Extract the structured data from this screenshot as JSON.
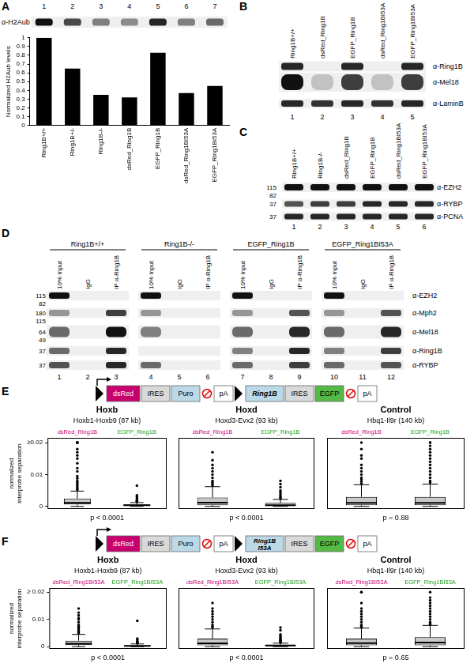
{
  "panel_labels": [
    "A",
    "B",
    "C",
    "D",
    "E",
    "F"
  ],
  "blot_A": {
    "lane_numbers": [
      1,
      2,
      3,
      4,
      5,
      6,
      7
    ],
    "antibody": "α-H2Aub"
  },
  "blot_B": {
    "lane_labels": [
      "Ring1B+/+",
      "dsRed_Ring1B",
      "EGFP_Ring1B",
      "dsRed_Ring1BI53A",
      "EGFP_Ring1BI53A"
    ],
    "lane_numbers": [
      1,
      2,
      3,
      4,
      5
    ],
    "antibodies": [
      "α-Ring1B",
      "α-Mel18",
      "α-LaminB"
    ]
  },
  "blot_C": {
    "lane_labels": [
      "Ring1B+/+",
      "Ring1B-/-",
      "dsRed_Ring1B",
      "EGFP_Ring1B",
      "dsRed_Ring1BI53A",
      "EGFP_Ring1BI53A"
    ],
    "lane_numbers": [
      1,
      2,
      3,
      4,
      5,
      6
    ],
    "rows": [
      {
        "antibody": "α-EZH2",
        "markers": [
          115,
          82
        ]
      },
      {
        "antibody": "α-RYBP",
        "markers": [
          37
        ]
      },
      {
        "antibody": "α-PCNA",
        "markers": [
          37
        ]
      }
    ]
  },
  "blot_D": {
    "groups": [
      "Ring1B+/+",
      "Ring1B-/-",
      "EGFP_Ring1B",
      "EGFP_Ring1BI53A"
    ],
    "columns": [
      "10% Input",
      "IgG",
      "IP α-Ring1B"
    ],
    "lane_numbers": [
      1,
      2,
      3,
      4,
      5,
      6,
      7,
      8,
      9,
      10,
      11,
      12
    ],
    "rows": [
      {
        "antibody": "α-EZH2",
        "markers": [
          115,
          82
        ]
      },
      {
        "antibody": "α-Mph2",
        "markers": [
          180,
          115
        ]
      },
      {
        "antibody": "α-Mel18",
        "markers": [
          64,
          49
        ]
      },
      {
        "antibody": "α-Ring1B",
        "markers": [
          37
        ]
      },
      {
        "antibody": "α-RYBP",
        "markers": [
          37
        ]
      }
    ]
  },
  "constructs": {
    "E": [
      {
        "text": "dsRed",
        "color": "#c8006e"
      },
      {
        "text": "IRES",
        "color": "#d9d9d9"
      },
      {
        "text": "Puro",
        "color": "#bcd9e8"
      },
      {
        "text": "pA",
        "color": "#ffffff"
      },
      {
        "text": "Ring1B",
        "color": "#bcd9e8"
      },
      {
        "text": "IRES",
        "color": "#d9d9d9"
      },
      {
        "text": "EGFP",
        "color": "#55b947"
      },
      {
        "text": "pA",
        "color": "#ffffff"
      }
    ],
    "F": [
      {
        "text": "dsRed",
        "color": "#c8006e"
      },
      {
        "text": "IRES",
        "color": "#d9d9d9"
      },
      {
        "text": "Puro",
        "color": "#bcd9e8"
      },
      {
        "text": "pA",
        "color": "#ffffff"
      },
      {
        "text": "Ring1B I53A",
        "color": "#bcd9e8"
      },
      {
        "text": "IRES",
        "color": "#d9d9d9"
      },
      {
        "text": "EGFP",
        "color": "#55b947"
      },
      {
        "text": "pA",
        "color": "#ffffff"
      }
    ]
  },
  "chart_data": [
    {
      "type": "bar",
      "panel": "A",
      "categories": [
        "Ring1B+/+",
        "Ring1B+/-",
        "Ring1B-/-",
        "dsRed_Ring1B",
        "EGFP_Ring1B",
        "dsRed_Ring1BI53A",
        "EGFP_Ring1BI53A"
      ],
      "values": [
        1,
        0.65,
        0.35,
        0.32,
        0.83,
        0.37,
        0.45
      ],
      "color": "#000000",
      "ylabel": "Normalized H2Aub levels",
      "ylim": [
        0,
        1
      ],
      "yticks": [
        0,
        0.1,
        0.2,
        0.3,
        0.4,
        0.5,
        0.6,
        0.7,
        0.8,
        0.9,
        1
      ],
      "grid": false
    },
    {
      "type": "box",
      "panel": "E",
      "title": "Hoxb",
      "subtitle": "Hoxb1-Hoxb9 (87 kb)",
      "ylabel": "normalized interprobe separation",
      "annotation": "p < 0.0001",
      "ylim": [
        -0.0008,
        0.0215
      ],
      "yticks": [
        0,
        0.01,
        {
          "value": 0.02,
          "label": "≥0.02"
        }
      ],
      "grid": false,
      "series": [
        {
          "name": "dsRed_Ring1B",
          "color": "#c8006e",
          "box": {
            "whisker_low": 0,
            "q1": 0.0006,
            "median": 0.0011,
            "q3": 0.0025,
            "whisker_high": 0.0048,
            "outliers": [
              0.0052,
              0.0055,
              0.006,
              0.0065,
              0.007,
              0.0075,
              0.008,
              0.0088,
              0.0095,
              0.011,
              0.012,
              0.0135,
              0.015,
              0.016,
              0.017,
              0.018,
              0.02,
              0.02,
              0.02,
              0.02
            ]
          }
        },
        {
          "name": "EGFP_Ring1B",
          "color": "#22a022",
          "box": {
            "whisker_low": 0,
            "q1": 0.0002,
            "median": 0.0004,
            "q3": 0.0006,
            "whisker_high": 0.0012,
            "outliers": [
              0.0014,
              0.0016,
              0.0018,
              0.002,
              0.0025,
              0.003,
              0.0035,
              0.0065
            ]
          }
        }
      ]
    },
    {
      "type": "box",
      "panel": "E",
      "title": "Hoxd",
      "subtitle": "Hoxd3-Evx2 (93 kb)",
      "annotation": "p < 0.0001",
      "tick_labels": false,
      "ylim": [
        -0.0008,
        0.0215
      ],
      "yticks": [
        0,
        0.01,
        {
          "value": 0.02,
          "label": "≥0.02"
        }
      ],
      "grid": false,
      "series": [
        {
          "name": "dsRed_Ring1B",
          "color": "#c8006e",
          "box": {
            "whisker_low": 0,
            "q1": 0.0004,
            "median": 0.0012,
            "q3": 0.0028,
            "whisker_high": 0.0062,
            "outliers": [
              0.0065,
              0.007,
              0.0075,
              0.008,
              0.009,
              0.01,
              0.011,
              0.012,
              0.013,
              0.0145,
              0.017
            ]
          }
        },
        {
          "name": "EGFP_Ring1B",
          "color": "#22a022",
          "box": {
            "whisker_low": 0,
            "q1": 0.0002,
            "median": 0.0004,
            "q3": 0.0011,
            "whisker_high": 0.0022,
            "outliers": [
              0.0024,
              0.0027,
              0.003,
              0.0035,
              0.004,
              0.0045,
              0.005,
              0.006,
              0.007,
              0.008
            ]
          }
        }
      ]
    },
    {
      "type": "box",
      "panel": "E",
      "title": "Control",
      "subtitle": "Hbq1-Il9r (140 kb)",
      "annotation": "p = 0.88",
      "tick_labels": false,
      "ylim": [
        -0.0008,
        0.0215
      ],
      "yticks": [
        0,
        0.01,
        {
          "value": 0.02,
          "label": "≥0.02"
        }
      ],
      "grid": false,
      "series": [
        {
          "name": "dsRed_Ring1B",
          "color": "#c8006e",
          "box": {
            "whisker_low": 0,
            "q1": 0.0004,
            "median": 0.0011,
            "q3": 0.003,
            "whisker_high": 0.0068,
            "outliers": [
              0.0072,
              0.0078,
              0.0085,
              0.009,
              0.01,
              0.011,
              0.012,
              0.013,
              0.015,
              0.016,
              0.018,
              0.02
            ]
          }
        },
        {
          "name": "EGFP_Ring1B",
          "color": "#22a022",
          "box": {
            "whisker_low": 0,
            "q1": 0.0004,
            "median": 0.0011,
            "q3": 0.003,
            "whisker_high": 0.007,
            "outliers": [
              0.0075,
              0.008,
              0.009,
              0.01,
              0.011,
              0.012,
              0.013,
              0.014,
              0.015,
              0.016,
              0.017,
              0.018,
              0.019,
              0.02,
              0.02
            ]
          }
        }
      ]
    },
    {
      "type": "box",
      "panel": "F",
      "title": "Hoxb",
      "subtitle": "Hoxb1-Hoxb9 (87 kb)",
      "ylabel": "normalized interprobe separation",
      "annotation": "p < 0.0001",
      "ylim": [
        -0.0008,
        0.0215
      ],
      "yticks": [
        0,
        0.01,
        {
          "value": 0.02,
          "label": "≥ 0.02"
        }
      ],
      "grid": false,
      "series": [
        {
          "name": "dsRed_Ring1BI53A",
          "color": "#c8006e",
          "box": {
            "whisker_low": 0,
            "q1": 0.0006,
            "median": 0.0011,
            "q3": 0.0022,
            "whisker_high": 0.0045,
            "outliers": [
              0.0048,
              0.005,
              0.0055,
              0.006,
              0.0065,
              0.007,
              0.0075,
              0.008,
              0.009,
              0.01,
              0.0105,
              0.0115,
              0.0125,
              0.014
            ]
          }
        },
        {
          "name": "EGFP_Ring1BI53A",
          "color": "#22a022",
          "box": {
            "whisker_low": 0,
            "q1": 0.0001,
            "median": 0.0003,
            "q3": 0.0005,
            "whisker_high": 0.001,
            "outliers": [
              0.0012,
              0.0014,
              0.0016,
              0.0018,
              0.002,
              0.0025,
              0.003,
              0.0095
            ]
          }
        }
      ]
    },
    {
      "type": "box",
      "panel": "F",
      "title": "Hoxd",
      "subtitle": "Hoxd3-Evx2 (93 kb)",
      "annotation": "p < 0.0001",
      "tick_labels": false,
      "ylim": [
        -0.0008,
        0.0215
      ],
      "yticks": [
        0,
        0.01,
        {
          "value": 0.02,
          "label": "≥ 0.02"
        }
      ],
      "grid": false,
      "series": [
        {
          "name": "dsRed_Ring1BI53A",
          "color": "#c8006e",
          "box": {
            "whisker_low": 0,
            "q1": 0.0005,
            "median": 0.0012,
            "q3": 0.003,
            "whisker_high": 0.0065,
            "outliers": [
              0.007,
              0.0075,
              0.008,
              0.009,
              0.01,
              0.011,
              0.012,
              0.013,
              0.014,
              0.016
            ]
          }
        },
        {
          "name": "EGFP_Ring1BI53A",
          "color": "#22a022",
          "box": {
            "whisker_low": 0,
            "q1": 0.0002,
            "median": 0.0004,
            "q3": 0.0007,
            "whisker_high": 0.0013,
            "outliers": [
              0.0015,
              0.0018,
              0.002,
              0.0023,
              0.0026,
              0.003,
              0.0035,
              0.004,
              0.0045,
              0.006,
              0.007
            ]
          }
        }
      ]
    },
    {
      "type": "box",
      "panel": "F",
      "title": "Control",
      "subtitle": "Hbq1-Il9r (140 kb)",
      "annotation": "p = 0.65",
      "tick_labels": false,
      "ylim": [
        -0.0008,
        0.0215
      ],
      "yticks": [
        0,
        0.01,
        {
          "value": 0.02,
          "label": "≥ 0.02"
        }
      ],
      "grid": false,
      "series": [
        {
          "name": "dsRed_Ring1BI53A",
          "color": "#c8006e",
          "box": {
            "whisker_low": 0,
            "q1": 0.0005,
            "median": 0.0013,
            "q3": 0.003,
            "whisker_high": 0.0068,
            "outliers": [
              0.007,
              0.0075,
              0.008,
              0.009,
              0.01,
              0.011,
              0.012,
              0.013,
              0.014,
              0.016,
              0.02,
              0.02
            ]
          }
        },
        {
          "name": "EGFP_Ring1BI53A",
          "color": "#22a022",
          "box": {
            "whisker_low": 0,
            "q1": 0.0005,
            "median": 0.0015,
            "q3": 0.0035,
            "whisker_high": 0.0078,
            "outliers": [
              0.008,
              0.0085,
              0.009,
              0.01,
              0.011,
              0.012,
              0.013,
              0.014,
              0.015,
              0.016,
              0.017,
              0.018,
              0.02
            ]
          }
        }
      ]
    }
  ]
}
